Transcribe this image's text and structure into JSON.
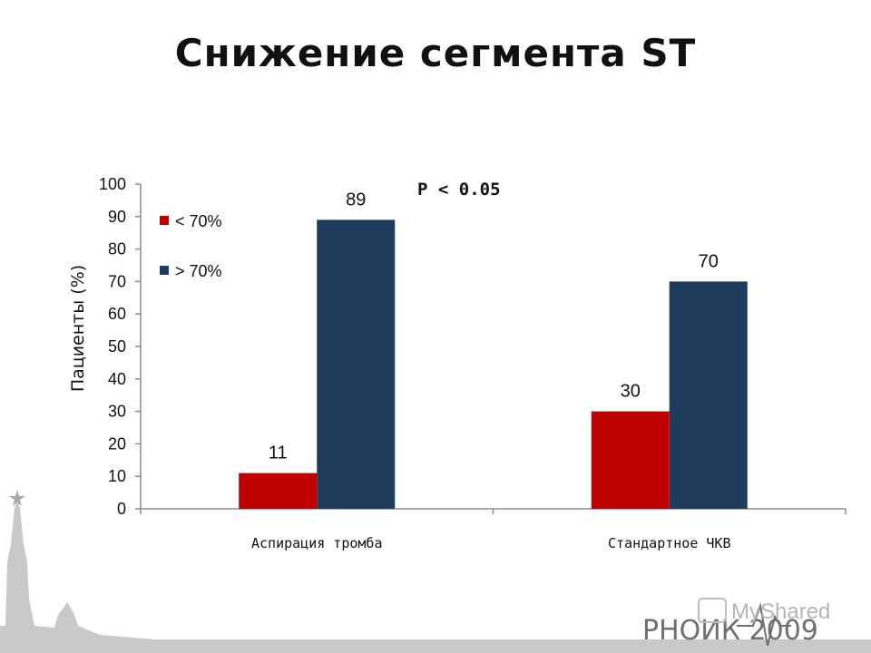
{
  "slide": {
    "title": "Снижение сегмента ST"
  },
  "chart_data": {
    "type": "bar",
    "categories": [
      "Аспирация тромба",
      "Стандартное ЧКВ"
    ],
    "series": [
      {
        "name": "< 70%",
        "values": [
          11,
          30
        ],
        "color": "#c00000"
      },
      {
        "name": "> 70%",
        "values": [
          89,
          70
        ],
        "color": "#1f3b5c"
      }
    ],
    "ylabel": "Пациенты (%)",
    "ylim": [
      0,
      100
    ],
    "yticks": [
      0,
      10,
      20,
      30,
      40,
      50,
      60,
      70,
      80,
      90,
      100
    ],
    "annotation": "P < 0.05",
    "legend_position": "top-left",
    "grid": false
  },
  "footer": {
    "brand": "РНОИК 2009",
    "watermark": "MyShared"
  }
}
